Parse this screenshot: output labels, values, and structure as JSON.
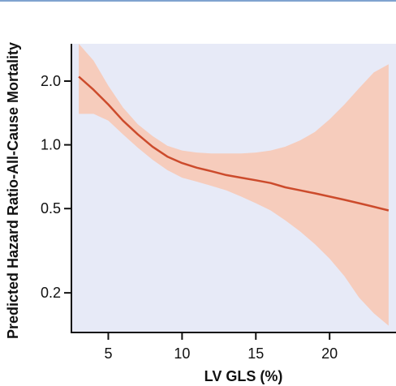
{
  "colors": {
    "plot_background": "#e7eaf7",
    "ci_band": "#f6ccbc",
    "line": "#cc4b2c",
    "axis": "#111111",
    "top_rule": "#7fa3cf"
  },
  "chart_data": {
    "type": "line",
    "title": "",
    "xlabel": "LV GLS (%)",
    "ylabel": "Predicted Hazard Ratio-All-Cause Mortality",
    "xlim": [
      2.5,
      24.5
    ],
    "ylim": [
      0.13,
      3.0
    ],
    "y_scale": "log",
    "x_ticks": [
      5,
      10,
      15,
      20
    ],
    "x_tick_labels": [
      "5",
      "10",
      "15",
      "20"
    ],
    "y_ticks": [
      0.2,
      0.5,
      1.0,
      2.0
    ],
    "y_tick_labels": [
      "0.2",
      "0.5",
      "1.0",
      "2.0"
    ],
    "grid": false,
    "legend": "none",
    "series": [
      {
        "x": [
          3,
          4,
          5,
          6,
          7,
          8,
          9,
          10,
          11,
          12,
          13,
          14,
          15,
          16,
          17,
          18,
          19,
          20,
          21,
          22,
          23,
          24
        ],
        "y": [
          2.1,
          1.82,
          1.55,
          1.3,
          1.12,
          0.98,
          0.88,
          0.82,
          0.78,
          0.75,
          0.72,
          0.7,
          0.68,
          0.66,
          0.63,
          0.61,
          0.59,
          0.57,
          0.55,
          0.53,
          0.51,
          0.49
        ],
        "lower": [
          1.4,
          1.4,
          1.3,
          1.12,
          0.97,
          0.85,
          0.76,
          0.7,
          0.67,
          0.64,
          0.61,
          0.57,
          0.53,
          0.49,
          0.44,
          0.39,
          0.34,
          0.29,
          0.24,
          0.19,
          0.16,
          0.14
        ],
        "upper": [
          3.2,
          2.5,
          1.9,
          1.5,
          1.25,
          1.1,
          0.99,
          0.94,
          0.92,
          0.91,
          0.91,
          0.91,
          0.92,
          0.94,
          0.98,
          1.05,
          1.15,
          1.32,
          1.55,
          1.85,
          2.2,
          2.4
        ]
      }
    ]
  }
}
